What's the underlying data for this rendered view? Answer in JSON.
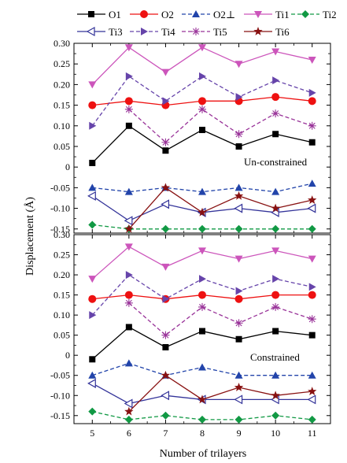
{
  "figure": {
    "ylabel": "Displacement (Å)",
    "xlabel": "Number of trilayers"
  },
  "legend": [
    {
      "label": "O1",
      "color": "#000000",
      "marker": "square-filled",
      "dash": "solid"
    },
    {
      "label": "O2",
      "color": "#ee1111",
      "marker": "circle-filled",
      "dash": "solid"
    },
    {
      "label": "O2⊥",
      "color": "#2244aa",
      "marker": "triangle-up-filled",
      "dash": "dashed"
    },
    {
      "label": "Ti1",
      "color": "#cc55bb",
      "marker": "triangle-down-filled",
      "dash": "solid"
    },
    {
      "label": "Ti2",
      "color": "#119944",
      "marker": "diamond-filled",
      "dash": "dashed"
    },
    {
      "label": "Ti3",
      "color": "#333399",
      "marker": "triangle-left-open",
      "dash": "solid"
    },
    {
      "label": "Ti4",
      "color": "#6644aa",
      "marker": "triangle-right-filled",
      "dash": "dashed"
    },
    {
      "label": "Ti5",
      "color": "#993399",
      "marker": "asterisk",
      "dash": "dashed"
    },
    {
      "label": "Ti6",
      "color": "#881111",
      "marker": "star-filled",
      "dash": "solid"
    }
  ],
  "chart_data": [
    {
      "type": "line",
      "annotation": "Un-constrained",
      "x": [
        5,
        6,
        7,
        8,
        9,
        10,
        11
      ],
      "xlim": [
        4.5,
        11.5
      ],
      "ylim": [
        -0.16,
        0.3
      ],
      "yticks": [
        "0.30",
        "0.25",
        "0.20",
        "0.15",
        "0.10",
        "0.05",
        "0",
        "-0.05",
        "-0.10",
        "-0.15"
      ],
      "ytick_values": [
        0.3,
        0.25,
        0.2,
        0.15,
        0.1,
        0.05,
        0,
        -0.05,
        -0.1,
        -0.15
      ],
      "series": [
        {
          "name": "O1",
          "values": [
            0.01,
            0.1,
            0.04,
            0.09,
            0.05,
            0.08,
            0.06
          ]
        },
        {
          "name": "O2",
          "values": [
            0.15,
            0.16,
            0.15,
            0.16,
            0.16,
            0.17,
            0.16
          ]
        },
        {
          "name": "O2⊥",
          "values": [
            -0.05,
            -0.06,
            -0.05,
            -0.06,
            -0.05,
            -0.06,
            -0.04
          ]
        },
        {
          "name": "Ti1",
          "values": [
            0.2,
            0.29,
            0.23,
            0.29,
            0.25,
            0.28,
            0.26
          ]
        },
        {
          "name": "Ti2",
          "values": [
            -0.14,
            -0.15,
            -0.15,
            -0.15,
            -0.15,
            -0.15,
            -0.15
          ]
        },
        {
          "name": "Ti3",
          "values": [
            -0.07,
            -0.13,
            -0.09,
            -0.11,
            -0.1,
            -0.11,
            -0.1
          ]
        },
        {
          "name": "Ti4",
          "values": [
            0.1,
            0.22,
            0.16,
            0.22,
            0.17,
            0.21,
            0.18
          ]
        },
        {
          "name": "Ti5",
          "values": [
            null,
            0.14,
            0.06,
            0.14,
            0.08,
            0.13,
            0.1
          ]
        },
        {
          "name": "Ti6",
          "values": [
            null,
            -0.15,
            -0.05,
            -0.11,
            -0.07,
            -0.1,
            -0.08
          ]
        }
      ]
    },
    {
      "type": "line",
      "annotation": "Constrained",
      "x": [
        5,
        6,
        7,
        8,
        9,
        10,
        11
      ],
      "xlim": [
        4.5,
        11.5
      ],
      "xticks": [
        "5",
        "6",
        "7",
        "8",
        "9",
        "10",
        "11"
      ],
      "ylim": [
        -0.17,
        0.3
      ],
      "yticks": [
        "0.30",
        "0.25",
        "0.20",
        "0.15",
        "0.10",
        "0.05",
        "0",
        "-0.05",
        "-0.10",
        "-0.15"
      ],
      "ytick_values": [
        0.3,
        0.25,
        0.2,
        0.15,
        0.1,
        0.05,
        0,
        -0.05,
        -0.1,
        -0.15
      ],
      "series": [
        {
          "name": "O1",
          "values": [
            -0.01,
            0.07,
            0.02,
            0.06,
            0.04,
            0.06,
            0.05
          ]
        },
        {
          "name": "O2",
          "values": [
            0.14,
            0.15,
            0.14,
            0.15,
            0.14,
            0.15,
            0.15
          ]
        },
        {
          "name": "O2⊥",
          "values": [
            -0.05,
            -0.02,
            -0.05,
            -0.03,
            -0.05,
            -0.05,
            -0.05
          ]
        },
        {
          "name": "Ti1",
          "values": [
            0.19,
            0.27,
            0.22,
            0.26,
            0.24,
            0.26,
            0.24
          ]
        },
        {
          "name": "Ti2",
          "values": [
            -0.14,
            -0.16,
            -0.15,
            -0.16,
            -0.16,
            -0.15,
            -0.16
          ]
        },
        {
          "name": "Ti3",
          "values": [
            -0.07,
            -0.12,
            -0.1,
            -0.11,
            -0.11,
            -0.11,
            -0.11
          ]
        },
        {
          "name": "Ti4",
          "values": [
            0.1,
            0.2,
            0.14,
            0.19,
            0.16,
            0.19,
            0.17
          ]
        },
        {
          "name": "Ti5",
          "values": [
            null,
            0.13,
            0.05,
            0.12,
            0.08,
            0.12,
            0.09
          ]
        },
        {
          "name": "Ti6",
          "values": [
            null,
            -0.14,
            -0.05,
            -0.11,
            -0.08,
            -0.1,
            -0.09
          ]
        }
      ]
    }
  ]
}
